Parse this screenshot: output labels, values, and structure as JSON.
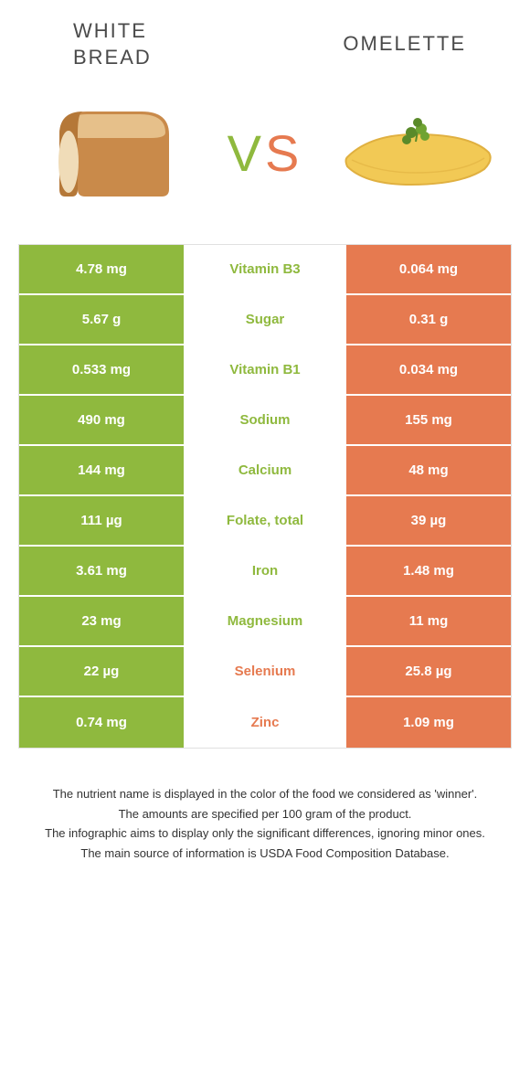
{
  "header": {
    "left_title": "WHITE BREAD",
    "right_title": "OMELETTE"
  },
  "vs": {
    "v": "V",
    "s": "S"
  },
  "colors": {
    "green": "#8fb93e",
    "orange": "#e67a50",
    "bread_crust": "#c98a4a",
    "bread_top": "#e6c08a",
    "bread_face": "#f0dcb8",
    "omelette_fill": "#f2c955",
    "omelette_edge": "#e0b040",
    "parsley": "#5a8a2a"
  },
  "rows": [
    {
      "left": "4.78 mg",
      "mid": "Vitamin B3",
      "right": "0.064 mg",
      "winner": "left"
    },
    {
      "left": "5.67 g",
      "mid": "Sugar",
      "right": "0.31 g",
      "winner": "left"
    },
    {
      "left": "0.533 mg",
      "mid": "Vitamin B1",
      "right": "0.034 mg",
      "winner": "left"
    },
    {
      "left": "490 mg",
      "mid": "Sodium",
      "right": "155 mg",
      "winner": "left"
    },
    {
      "left": "144 mg",
      "mid": "Calcium",
      "right": "48 mg",
      "winner": "left"
    },
    {
      "left": "111 µg",
      "mid": "Folate, total",
      "right": "39 µg",
      "winner": "left"
    },
    {
      "left": "3.61 mg",
      "mid": "Iron",
      "right": "1.48 mg",
      "winner": "left"
    },
    {
      "left": "23 mg",
      "mid": "Magnesium",
      "right": "11 mg",
      "winner": "left"
    },
    {
      "left": "22 µg",
      "mid": "Selenium",
      "right": "25.8 µg",
      "winner": "right"
    },
    {
      "left": "0.74 mg",
      "mid": "Zinc",
      "right": "1.09 mg",
      "winner": "right"
    }
  ],
  "footnotes": [
    "The nutrient name is displayed in the color of the food we considered as 'winner'.",
    "The amounts are specified per 100 gram of the product.",
    "The infographic aims to display only the significant differences, ignoring minor ones.",
    "The main source of information is USDA Food Composition Database."
  ]
}
